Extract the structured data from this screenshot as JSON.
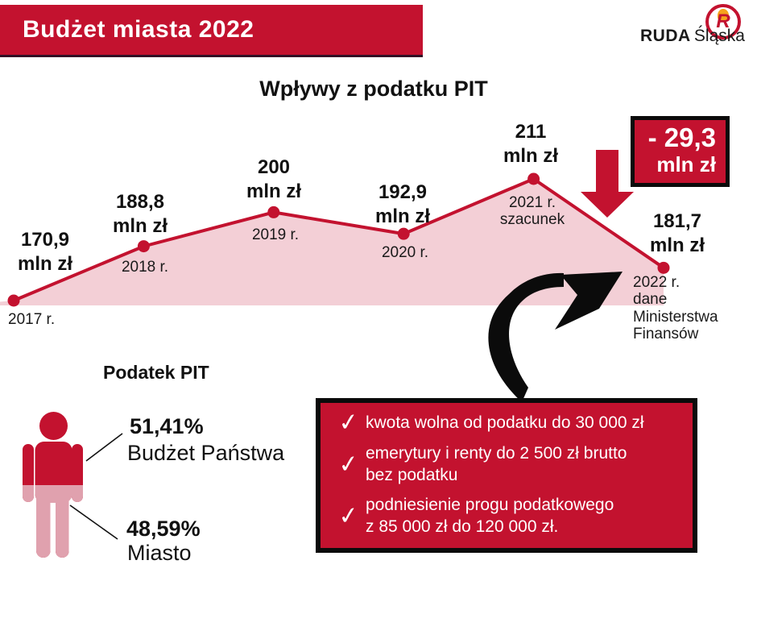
{
  "header": {
    "banner_title": "Budżet miasta 2022"
  },
  "logo": {
    "brand_bold": "RUDA",
    "brand_light": "Śląska",
    "monogram": "R"
  },
  "chart_title": "Wpływy z podatku PIT",
  "chart_data": [
    {
      "type": "line",
      "title": "Wpływy z podatku PIT",
      "x": [
        "2017",
        "2018",
        "2019",
        "2020",
        "2021",
        "2022"
      ],
      "series": [
        {
          "name": "Wpływy z podatku PIT (mln zł)",
          "values": [
            170.9,
            188.8,
            200,
            192.9,
            211,
            181.7
          ]
        }
      ],
      "ylabel": "mln zł",
      "ylim": [
        165,
        215
      ],
      "grid": false,
      "legend": false,
      "area_fill": true,
      "point_value_labels": [
        [
          "170,9",
          "mln zł"
        ],
        [
          "188,8",
          "mln zł"
        ],
        [
          "200",
          "mln zł"
        ],
        [
          "192,9",
          "mln zł"
        ],
        [
          "211",
          "mln zł"
        ],
        [
          "181,7",
          "mln zł"
        ]
      ],
      "point_year_labels": [
        [
          "2017 r."
        ],
        [
          "2018 r."
        ],
        [
          "2019 r."
        ],
        [
          "2020 r."
        ],
        [
          "2021 r.",
          "szacunek"
        ],
        [
          "2022 r.",
          "dane",
          "Ministerstwa",
          "Finansów"
        ]
      ],
      "annotation": {
        "delta": "- 29,3 mln zł"
      }
    },
    {
      "type": "pie",
      "title": "Podatek PIT",
      "categories": [
        "Budżet Państwa",
        "Miasto"
      ],
      "values": [
        51.41,
        48.59
      ]
    }
  ],
  "delta_box": {
    "line1": "- 29,3",
    "line2": "mln zł"
  },
  "pit_split": {
    "heading": "Podatek PIT",
    "state_pct": "51,41%",
    "state_label": "Budżet Państwa",
    "city_pct": "48,59%",
    "city_label": "Miasto"
  },
  "checklist": {
    "check_glyph": "✓",
    "items": [
      [
        "kwota wolna od podatku do 30 000 zł"
      ],
      [
        "emerytury i renty do 2 500 zł brutto",
        "bez podatku"
      ],
      [
        "podniesienie progu podatkowego",
        "z 85 000 zł do 120 000 zł."
      ]
    ]
  },
  "colors": {
    "red": "#C3122F",
    "area_pink": "#F3CFD6",
    "person_pink": "#E0A1AE",
    "black": "#0b0b0b",
    "white": "#FFFFFF"
  }
}
